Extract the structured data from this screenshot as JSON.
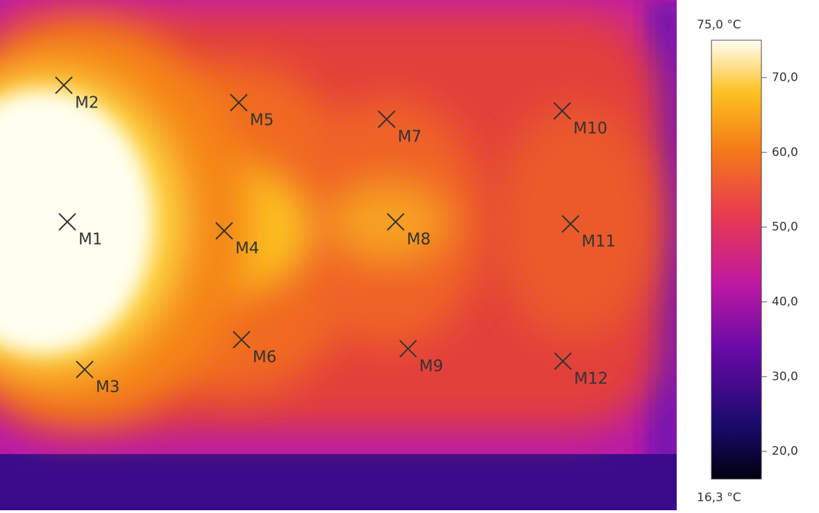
{
  "markers": [
    {
      "label": "M1"
    },
    {
      "label": "M2"
    },
    {
      "label": "M3"
    },
    {
      "label": "M4"
    },
    {
      "label": "M5"
    },
    {
      "label": "M6"
    },
    {
      "label": "M7"
    },
    {
      "label": "M8"
    },
    {
      "label": "M9"
    },
    {
      "label": "M10"
    },
    {
      "label": "M11"
    },
    {
      "label": "M12"
    }
  ],
  "scale": {
    "max": {
      "value": 75.0,
      "label": "75,0 °C"
    },
    "min": {
      "value": 16.3,
      "label": "16,3 °C"
    },
    "ticks": [
      {
        "value": 70,
        "label": "70,0"
      },
      {
        "value": 60,
        "label": "60,0"
      },
      {
        "value": 50,
        "label": "50,0"
      },
      {
        "value": 40,
        "label": "40,0"
      },
      {
        "value": 30,
        "label": "30,0"
      },
      {
        "value": 20,
        "label": "20,0"
      }
    ]
  }
}
